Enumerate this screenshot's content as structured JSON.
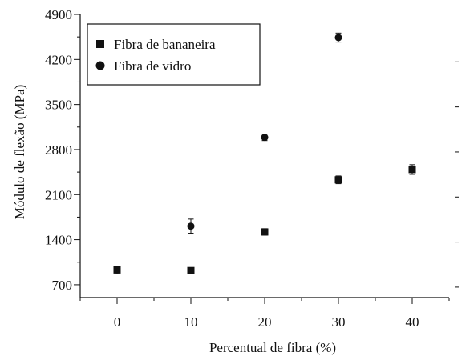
{
  "chart_data": {
    "type": "scatter",
    "title": "",
    "xlabel": "Percentual de fibra (%)",
    "ylabel": "Módulo de flexão (MPa)",
    "xlim": [
      -5,
      45
    ],
    "ylim": [
      500,
      4900
    ],
    "xticks": [
      0,
      10,
      20,
      30,
      40
    ],
    "yticks": [
      700,
      1400,
      2100,
      2800,
      3500,
      4200,
      4900
    ],
    "xtick_labels": [
      "0",
      "10",
      "20",
      "30",
      "40"
    ],
    "ytick_labels": [
      "700",
      "1400",
      "2100",
      "2800",
      "3500",
      "4200",
      "4900"
    ],
    "grid": false,
    "legend_position": "top-left",
    "error_bars": true,
    "series": [
      {
        "name": "Fibra de bananeira",
        "marker": "square",
        "color": "#111111",
        "x": [
          0,
          10,
          20,
          30,
          40
        ],
        "y": [
          930,
          920,
          1520,
          2330,
          2490
        ],
        "err": [
          25,
          30,
          50,
          60,
          75
        ]
      },
      {
        "name": "Fibra de vidro",
        "marker": "circle",
        "color": "#111111",
        "x": [
          0,
          10,
          20,
          30
        ],
        "y": [
          930,
          1610,
          2990,
          4540
        ],
        "err": [
          25,
          110,
          50,
          70
        ]
      }
    ]
  }
}
